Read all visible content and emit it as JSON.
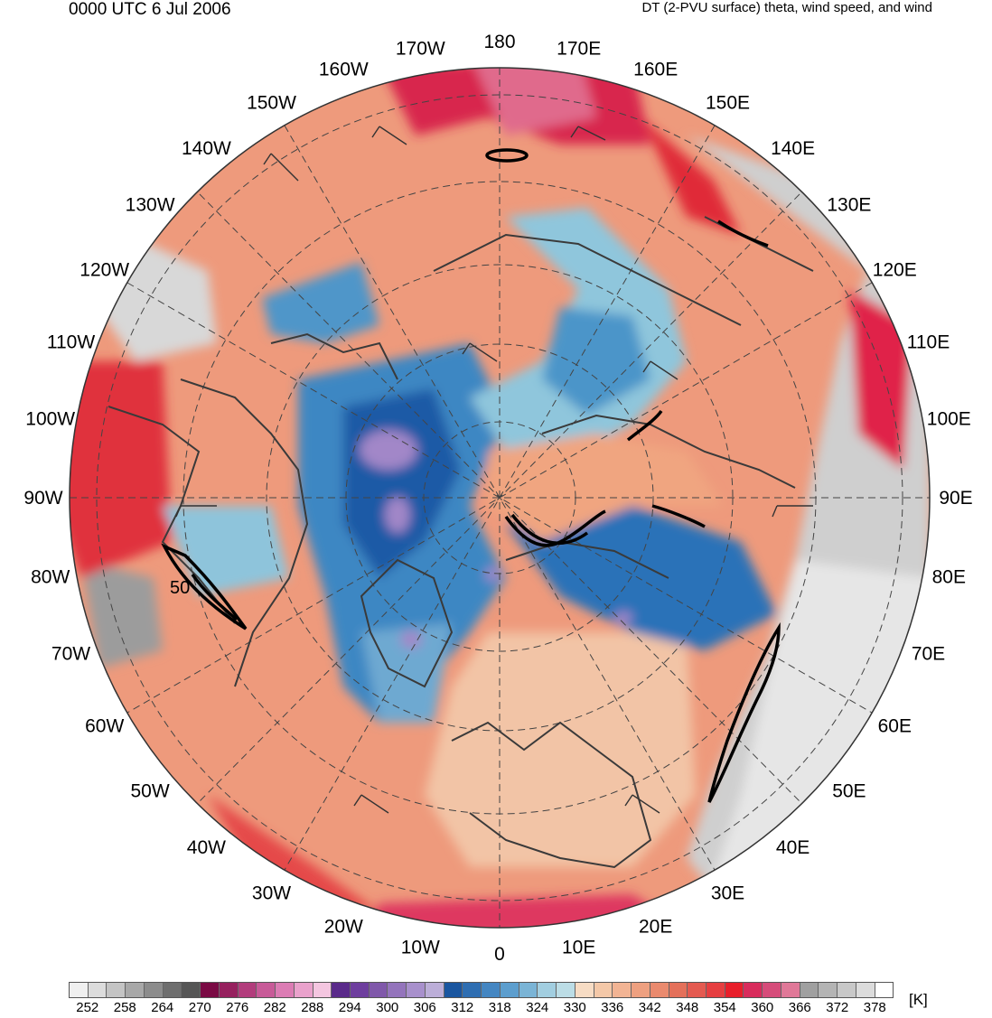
{
  "header": {
    "time_label": "0000 UTC 6 Jul 2006",
    "field_label": "DT (2-PVU surface) theta, wind speed, and wind"
  },
  "map": {
    "projection": "north-polar-stereographic",
    "longitude_labels": [
      "180",
      "170E",
      "160E",
      "150E",
      "140E",
      "130E",
      "120E",
      "110E",
      "100E",
      "90E",
      "80E",
      "70E",
      "60E",
      "50E",
      "40E",
      "30E",
      "20E",
      "10E",
      "0",
      "10W",
      "20W",
      "30W",
      "40W",
      "50W",
      "60W",
      "70W",
      "80W",
      "90W",
      "100W",
      "110W",
      "120W",
      "130W",
      "140W",
      "150W",
      "160W",
      "170W"
    ],
    "contour_label": "50",
    "colors": {
      "cold_core": "#1f5aa6",
      "deep_blue": "#2c72b8",
      "mid_blue": "#4c95c9",
      "light_blue": "#9fd0e0",
      "pale": "#f6d9c0",
      "salmon": "#eea987",
      "orange_red": "#e87a62",
      "red": "#e8303a",
      "magenta": "#d43a6a",
      "purple": "#a287c8",
      "gray": "#a8a8a8",
      "light_gray": "#dcdcdc"
    }
  },
  "colorbar": {
    "units": "[K]",
    "tick_labels": [
      "252",
      "258",
      "264",
      "270",
      "276",
      "282",
      "288",
      "294",
      "300",
      "306",
      "312",
      "318",
      "324",
      "330",
      "336",
      "342",
      "348",
      "354",
      "360",
      "366",
      "372",
      "378"
    ],
    "colors": [
      "#f0f0f0",
      "#dcdcdc",
      "#c4c4c4",
      "#a8a8a8",
      "#8c8c8c",
      "#6e6e6e",
      "#555555",
      "#7a0a44",
      "#96205e",
      "#b23c7c",
      "#c85a98",
      "#dc7cb4",
      "#eaa2cc",
      "#f4c6e0",
      "#5a2a8a",
      "#6e3e9e",
      "#8058aa",
      "#9474bc",
      "#a890cc",
      "#bcaed8",
      "#1a56a0",
      "#2e6eb2",
      "#4486c2",
      "#5c9ece",
      "#7ab4d6",
      "#a2cee0",
      "#bcdde6",
      "#f7dcc4",
      "#f4c8a8",
      "#f2b494",
      "#eea080",
      "#ea8a6e",
      "#e4705a",
      "#e45a50",
      "#e63e40",
      "#e81e2a",
      "#d82c5c",
      "#d64c7a",
      "#e07898",
      "#a0a0a0",
      "#b4b4b4",
      "#c8c8c8",
      "#dcdcdc",
      "#ffffff"
    ]
  }
}
